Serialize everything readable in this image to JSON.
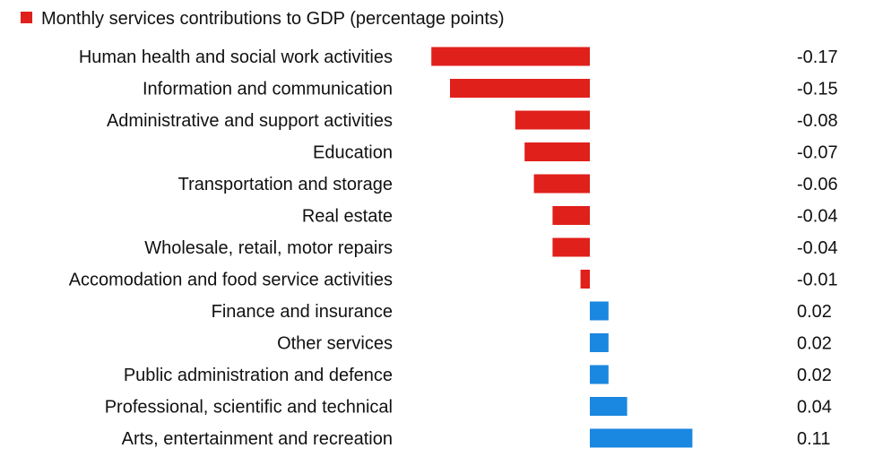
{
  "chart_data": {
    "type": "bar",
    "orientation": "horizontal",
    "legend": {
      "label": "Monthly services contributions to GDP (percentage points)",
      "placement": "top-left",
      "swatch_color": "#e0201b"
    },
    "colors": {
      "negative": "#e0201b",
      "positive": "#1a87e0"
    },
    "categories": [
      "Human health and social work activities",
      "Information and communication",
      "Administrative and support activities",
      "Education",
      "Transportation and storage",
      "Real estate",
      "Wholesale, retail, motor repairs",
      "Accomodation and food service activities",
      "Finance and insurance",
      "Other services",
      "Public administration and defence",
      "Professional, scientific and technical",
      "Arts, entertainment and recreation"
    ],
    "values": [
      -0.17,
      -0.15,
      -0.08,
      -0.07,
      -0.06,
      -0.04,
      -0.04,
      -0.01,
      0.02,
      0.02,
      0.02,
      0.04,
      0.11
    ],
    "value_labels": [
      "-0.17",
      "-0.15",
      "-0.08",
      "-0.07",
      "-0.06",
      "-0.04",
      "-0.04",
      "-0.01",
      "0.02",
      "0.02",
      "0.02",
      "0.04",
      "0.11"
    ],
    "xlim": [
      -0.17,
      0.11
    ],
    "grid": false
  }
}
